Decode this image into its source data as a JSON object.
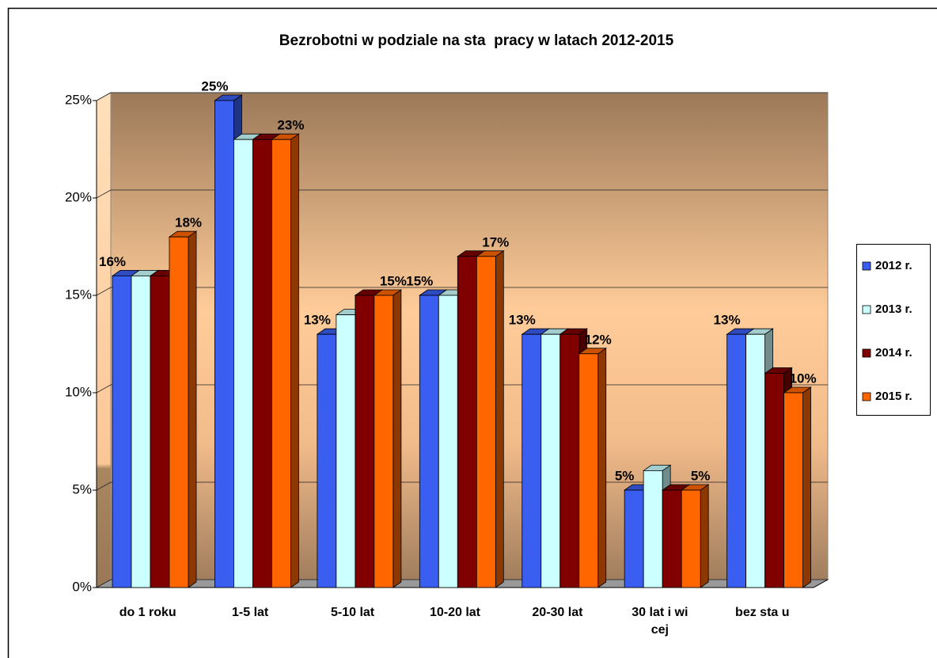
{
  "chart_data": {
    "type": "bar3d",
    "title": "Bezrobotni w podziale na sta  pracy w latach 2012-2015",
    "categories": [
      "do 1 roku",
      "1-5 lat",
      "5-10 lat",
      "10-20 lat",
      "20-30 lat",
      "30 lat i wi cej",
      "bez sta u"
    ],
    "series": [
      {
        "name": "2012 r.",
        "color": "#3a5ef0",
        "values": [
          16,
          25,
          13,
          15,
          13,
          5,
          13
        ],
        "value_labels": [
          "16%",
          "25%",
          "13%",
          "15%",
          "13%",
          "5%",
          "13%"
        ]
      },
      {
        "name": "2013 r.",
        "color": "#ccffff",
        "values": [
          16,
          23,
          14,
          15,
          13,
          6,
          13
        ]
      },
      {
        "name": "2014 r.",
        "color": "#800000",
        "values": [
          16,
          23,
          15,
          17,
          13,
          5,
          11
        ]
      },
      {
        "name": "2015 r.",
        "color": "#ff6600",
        "values": [
          18,
          23,
          15,
          17,
          12,
          5,
          10
        ],
        "value_labels": [
          "18%",
          "23%",
          "15%",
          "17%",
          "12%",
          "5%",
          "10%"
        ]
      }
    ],
    "ylim": [
      0,
      25
    ],
    "yticks": [
      {
        "value": 0,
        "label": "0%"
      },
      {
        "value": 5,
        "label": "5%"
      },
      {
        "value": 10,
        "label": "10%"
      },
      {
        "value": 15,
        "label": "15%"
      },
      {
        "value": 20,
        "label": "20%"
      },
      {
        "value": 25,
        "label": "25%"
      }
    ],
    "grid": true,
    "legend": "right"
  }
}
